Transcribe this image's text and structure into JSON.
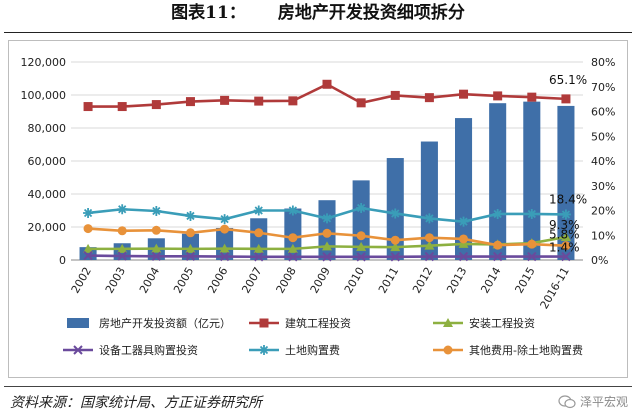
{
  "figure": {
    "label": "图表11：",
    "title": "房地产开发投资细项拆分"
  },
  "source": "资料来源：国家统计局、方正证券研究所",
  "watermark": {
    "text": "泽平宏观",
    "icon": "wechat-icon"
  },
  "chart_data": {
    "type": "bar+line",
    "title": "",
    "categories": [
      "2002",
      "2003",
      "2004",
      "2005",
      "2006",
      "2007",
      "2008",
      "2009",
      "2010",
      "2011",
      "2012",
      "2013",
      "2014",
      "2015",
      "2016-11"
    ],
    "left_axis": {
      "min": 0,
      "max": 120000,
      "ticks": [
        "0",
        "20,000",
        "40,000",
        "60,000",
        "80,000",
        "100,000",
        "120,000"
      ]
    },
    "right_axis": {
      "min": 0,
      "max": 80,
      "unit": "%",
      "ticks": [
        "0%",
        "10%",
        "20%",
        "30%",
        "40%",
        "50%",
        "60%",
        "70%",
        "80%"
      ]
    },
    "grid": true,
    "legend_position": "bottom",
    "bar_series": {
      "name": "房地产开发投资额（亿元）",
      "color": "#3f6fa8",
      "values": [
        7791,
        10154,
        13158,
        15909,
        19423,
        25289,
        31203,
        36242,
        48259,
        61797,
        71804,
        86013,
        95036,
        95979,
        93387
      ]
    },
    "line_series": [
      {
        "name": "建筑工程投资",
        "color": "#b03a3a",
        "marker": "square",
        "values": [
          62.0,
          62.0,
          62.8,
          64.0,
          64.5,
          64.2,
          64.3,
          71.0,
          63.5,
          66.5,
          65.6,
          67.0,
          66.3,
          65.8,
          65.1
        ]
      },
      {
        "name": "安装工程投资",
        "color": "#8db040",
        "marker": "triangle",
        "values": [
          4.5,
          4.5,
          4.6,
          4.5,
          4.6,
          4.5,
          4.5,
          5.5,
          5.3,
          5.2,
          5.8,
          6.5,
          6.3,
          6.8,
          9.3
        ]
      },
      {
        "name": "设备工器具购置投资",
        "color": "#6a4a9c",
        "marker": "x",
        "values": [
          1.8,
          1.6,
          1.5,
          1.5,
          1.4,
          1.3,
          1.3,
          1.3,
          1.3,
          1.3,
          1.4,
          1.4,
          1.4,
          1.4,
          1.4
        ]
      },
      {
        "name": "土地购置费",
        "color": "#3a9db8",
        "marker": "star",
        "values": [
          19.0,
          20.5,
          19.8,
          17.8,
          16.5,
          20.0,
          20.0,
          16.8,
          21.0,
          18.8,
          16.8,
          15.5,
          18.6,
          18.6,
          18.4
        ]
      },
      {
        "name": "其他费用-除土地购置费",
        "color": "#e8923a",
        "marker": "circle",
        "values": [
          12.7,
          11.8,
          12.0,
          11.0,
          12.5,
          11.0,
          9.0,
          10.8,
          9.8,
          8.0,
          9.0,
          8.5,
          6.0,
          6.4,
          5.8
        ]
      }
    ],
    "end_labels": [
      "65.1%",
      "18.4%",
      "9.3%",
      "5.8%",
      "1.4%"
    ]
  }
}
